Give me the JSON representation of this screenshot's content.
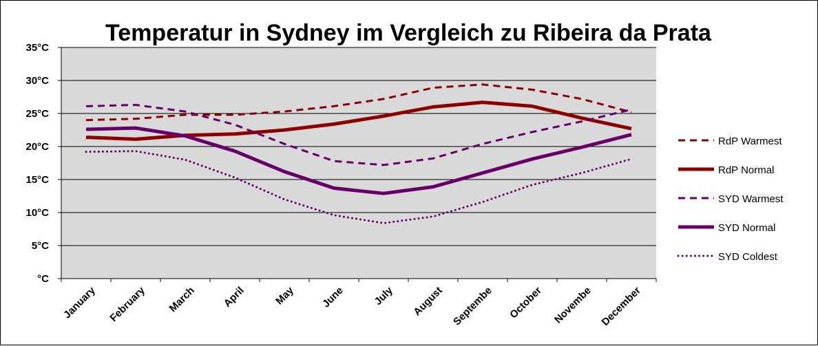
{
  "chart_data": {
    "type": "line",
    "title": "Temperatur in Sydney im Vergleich zu Ribeira da Prata",
    "xlabel": "",
    "ylabel": "",
    "categories": [
      "January",
      "February",
      "March",
      "April",
      "May",
      "June",
      "July",
      "August",
      "Septembe",
      "October",
      "Novembe",
      "December"
    ],
    "ylim": [
      0,
      35
    ],
    "yticks": [
      0,
      5,
      10,
      15,
      20,
      25,
      30,
      35
    ],
    "ytick_labels": [
      "°C",
      "5°C",
      "10°C",
      "15°C",
      "20°C",
      "25°C",
      "30°C",
      "35°C"
    ],
    "grid": true,
    "plot_background": "#d9d9d9",
    "legend_position": "right",
    "series": [
      {
        "name": "RdP Warmest",
        "color": "#8b0000",
        "style": "dashed",
        "weight": "thin",
        "values": [
          24.0,
          24.2,
          24.8,
          24.8,
          25.3,
          26.1,
          27.2,
          28.9,
          29.4,
          28.6,
          27.2,
          25.2
        ]
      },
      {
        "name": "RdP Normal",
        "color": "#8b0000",
        "style": "solid",
        "weight": "thick",
        "values": [
          21.4,
          21.1,
          21.7,
          21.9,
          22.5,
          23.4,
          24.6,
          26.0,
          26.7,
          26.1,
          24.3,
          22.7
        ]
      },
      {
        "name": "SYD Warmest",
        "color": "#660066",
        "style": "dashed",
        "weight": "thin",
        "values": [
          26.1,
          26.3,
          25.3,
          23.3,
          20.4,
          17.8,
          17.2,
          18.2,
          20.4,
          22.2,
          23.8,
          25.6
        ]
      },
      {
        "name": "SYD Normal",
        "color": "#660066",
        "style": "solid",
        "weight": "thick",
        "values": [
          22.6,
          22.8,
          21.6,
          19.3,
          16.2,
          13.7,
          12.9,
          13.9,
          16.0,
          18.1,
          19.9,
          21.8
        ]
      },
      {
        "name": "SYD Coldest",
        "color": "#660066",
        "style": "dotted",
        "weight": "thin",
        "values": [
          19.2,
          19.3,
          18.0,
          15.3,
          12.0,
          9.6,
          8.4,
          9.4,
          11.6,
          14.2,
          16.0,
          18.1
        ]
      }
    ]
  }
}
